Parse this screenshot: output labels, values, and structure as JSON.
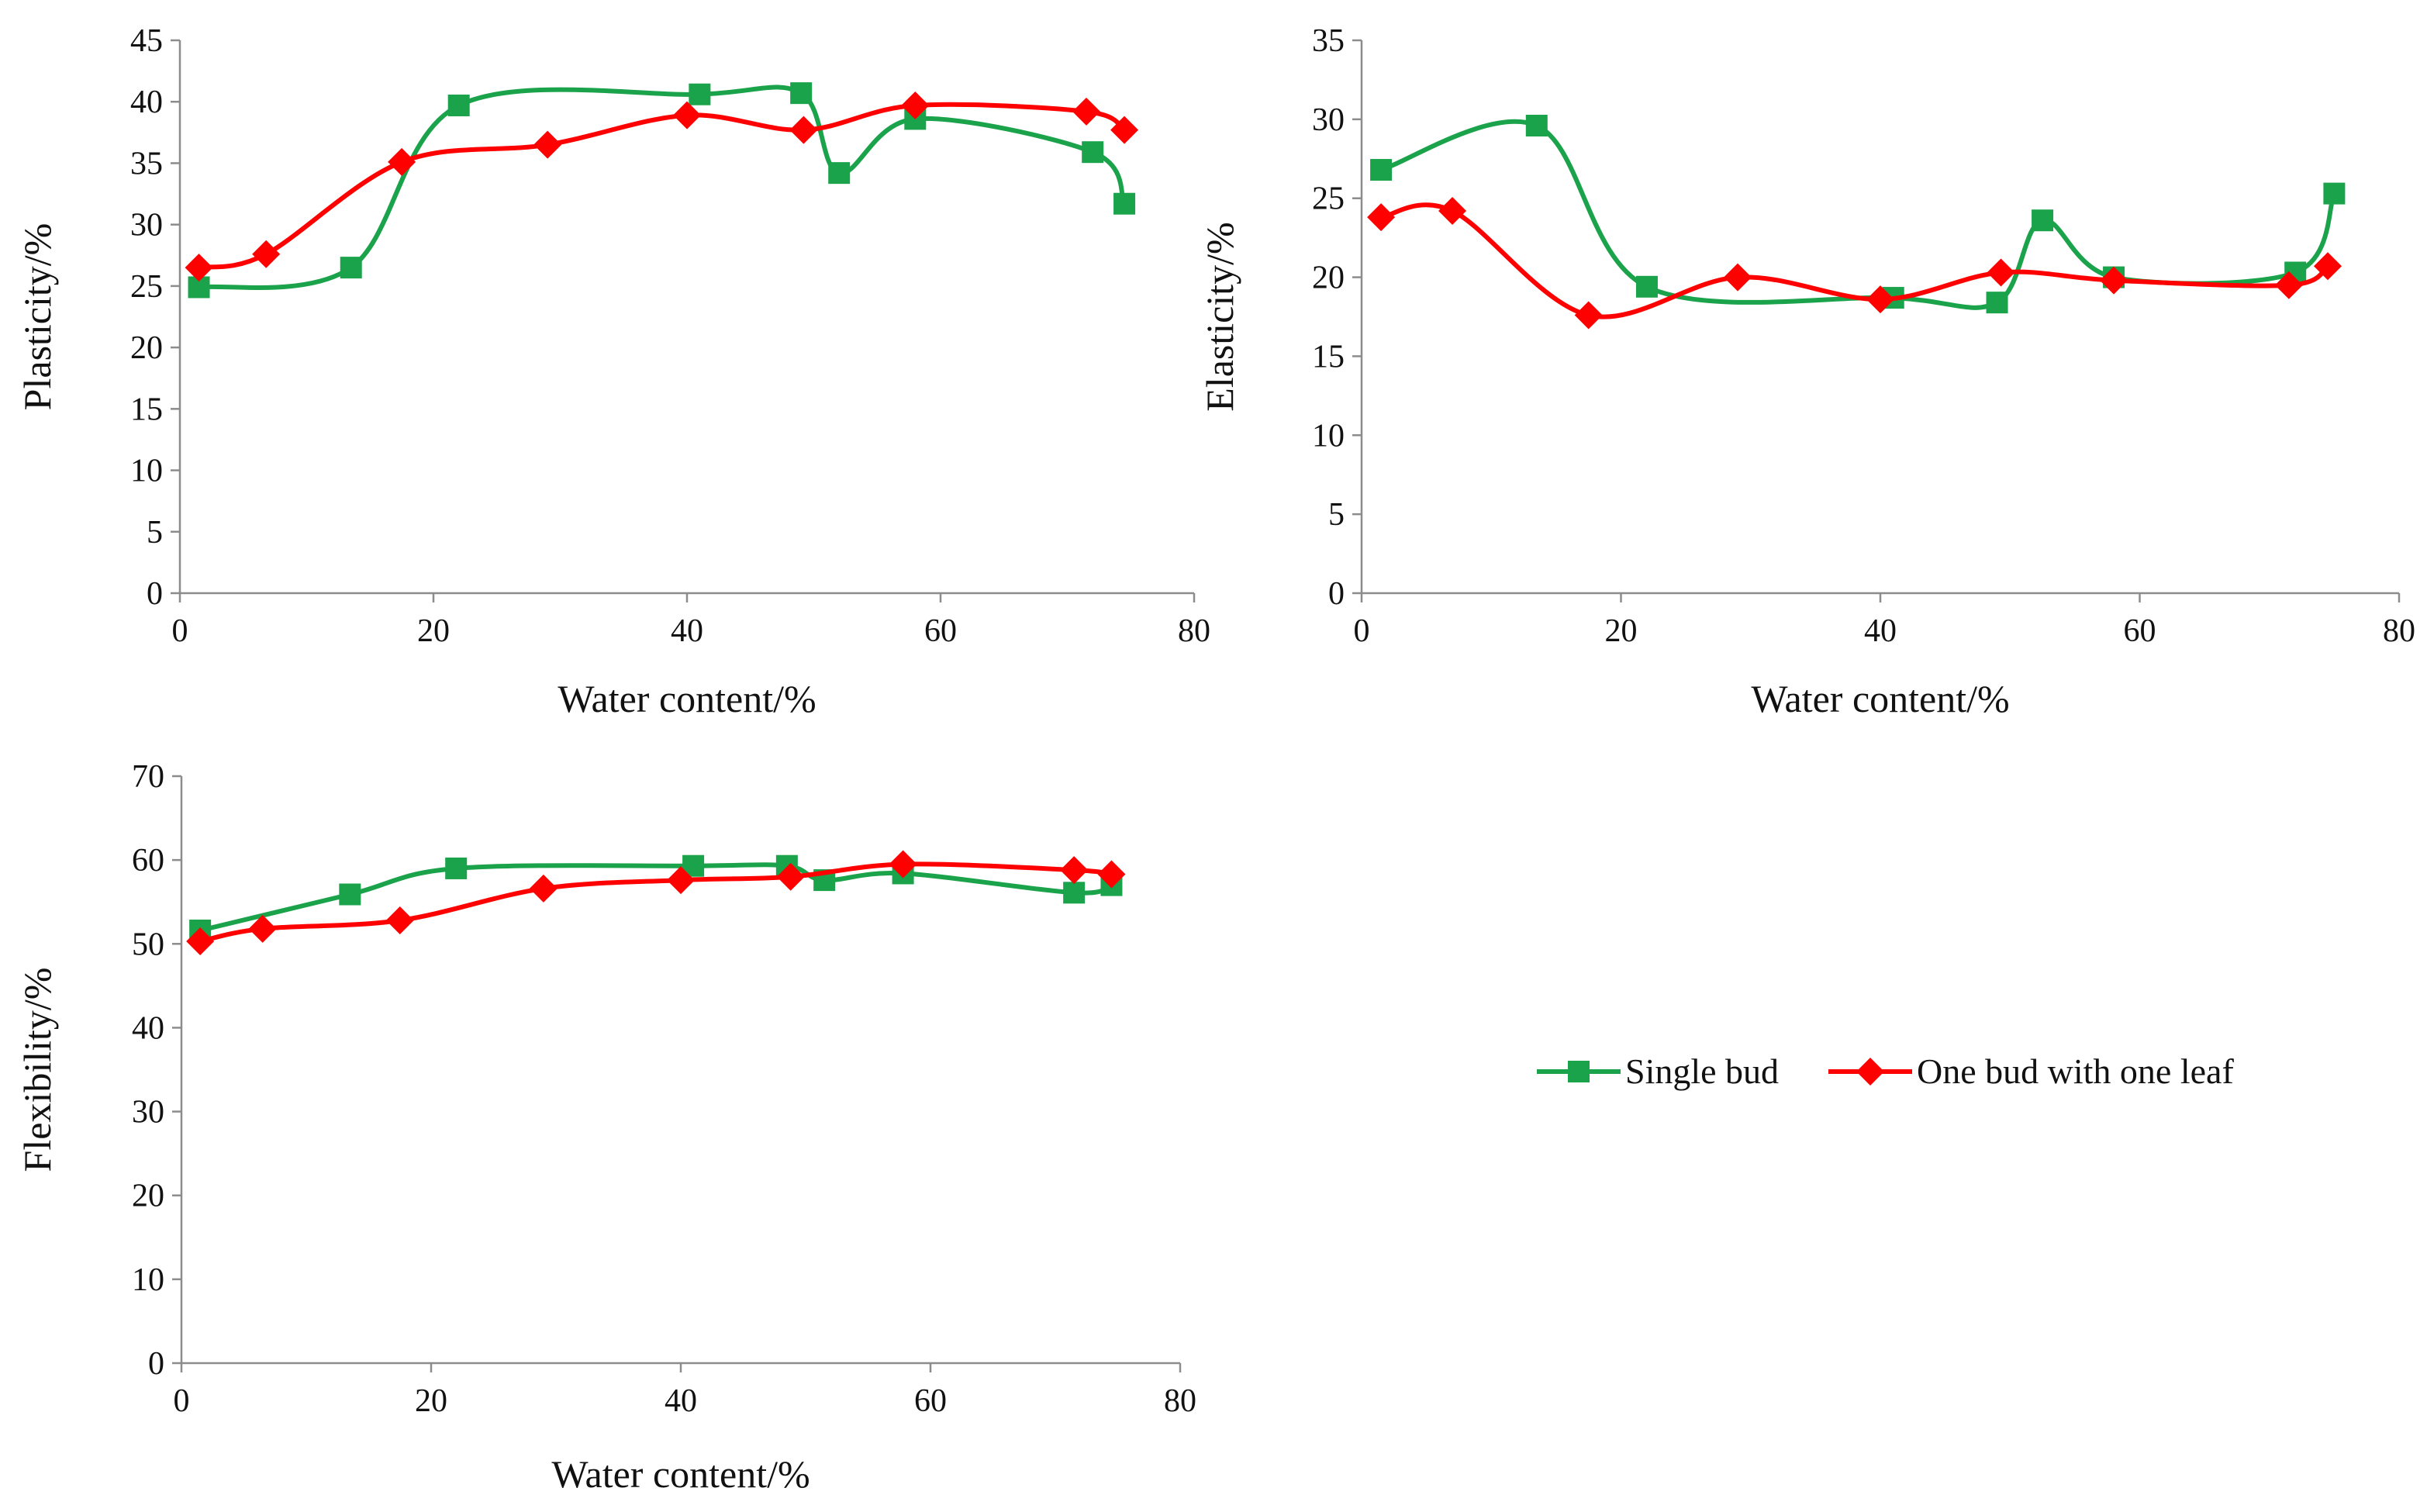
{
  "chart_data": [
    {
      "id": "plasticity",
      "type": "line",
      "title": "",
      "xlabel": "Water  content/%",
      "ylabel": "Plasticity/%",
      "xlim": [
        0,
        80
      ],
      "ylim": [
        0,
        45
      ],
      "xticks": [
        0,
        20,
        40,
        60,
        80
      ],
      "yticks": [
        0,
        5,
        10,
        15,
        20,
        25,
        30,
        35,
        40,
        45
      ],
      "grid": false,
      "series": [
        {
          "name": "Single bud",
          "color": "#1aa34a",
          "marker": "square",
          "x": [
            1.5,
            13.5,
            22,
            41,
            49,
            52,
            58,
            72,
            74.5
          ],
          "y": [
            24.9,
            26.5,
            39.7,
            40.6,
            40.7,
            34.2,
            38.6,
            35.9,
            31.7
          ]
        },
        {
          "name": "One bud with one leaf",
          "color": "#ff0000",
          "marker": "diamond",
          "x": [
            1.5,
            6.8,
            17.5,
            29,
            40,
            49.2,
            58,
            71.5,
            74.5
          ],
          "y": [
            26.5,
            27.6,
            35.1,
            36.5,
            38.9,
            37.7,
            39.7,
            39.2,
            37.7
          ]
        }
      ]
    },
    {
      "id": "elasticity",
      "type": "line",
      "title": "",
      "xlabel": "Water  content/%",
      "ylabel": "Elasticity/%",
      "xlim": [
        0,
        80
      ],
      "ylim": [
        0,
        35
      ],
      "xticks": [
        0,
        20,
        40,
        60,
        80
      ],
      "yticks": [
        0,
        5,
        10,
        15,
        20,
        25,
        30,
        35
      ],
      "grid": false,
      "series": [
        {
          "name": "Single bud",
          "color": "#1aa34a",
          "marker": "square",
          "x": [
            1.5,
            13.5,
            22,
            41,
            49,
            52.5,
            58,
            72,
            75
          ],
          "y": [
            26.8,
            29.6,
            19.4,
            18.7,
            18.4,
            23.6,
            20.0,
            20.3,
            25.3
          ]
        },
        {
          "name": "One bud with one leaf",
          "color": "#ff0000",
          "marker": "diamond",
          "x": [
            1.5,
            7,
            17.5,
            29,
            40,
            49.3,
            58,
            71.5,
            74.5
          ],
          "y": [
            23.8,
            24.2,
            17.6,
            20.0,
            18.6,
            20.3,
            19.8,
            19.5,
            20.7
          ]
        }
      ]
    },
    {
      "id": "flexibility",
      "type": "line",
      "title": "",
      "xlabel": "Water  content/%",
      "ylabel": "Flexibility/%",
      "xlim": [
        0,
        80
      ],
      "ylim": [
        0,
        70
      ],
      "xticks": [
        0,
        20,
        40,
        60,
        80
      ],
      "yticks": [
        0,
        10,
        20,
        30,
        40,
        50,
        60,
        70
      ],
      "grid": false,
      "series": [
        {
          "name": "Single bud",
          "color": "#1aa34a",
          "marker": "square",
          "x": [
            1.5,
            13.5,
            22,
            41,
            48.5,
            51.5,
            57.8,
            71.5,
            74.5
          ],
          "y": [
            51.6,
            55.9,
            59.0,
            59.3,
            59.3,
            57.6,
            58.4,
            56.1,
            57.0
          ]
        },
        {
          "name": "One bud with one leaf",
          "color": "#ff0000",
          "marker": "diamond",
          "x": [
            1.5,
            6.5,
            17.5,
            29,
            40,
            48.8,
            57.8,
            71.5,
            74.5
          ],
          "y": [
            50.3,
            51.8,
            52.8,
            56.6,
            57.6,
            58.0,
            59.5,
            58.8,
            58.3
          ]
        }
      ]
    }
  ],
  "legend": {
    "placement": "right-middle",
    "entries": [
      {
        "label": "Single bud",
        "color": "#1aa34a",
        "marker": "square"
      },
      {
        "label": "One bud with one leaf",
        "color": "#ff0000",
        "marker": "diamond"
      }
    ]
  }
}
